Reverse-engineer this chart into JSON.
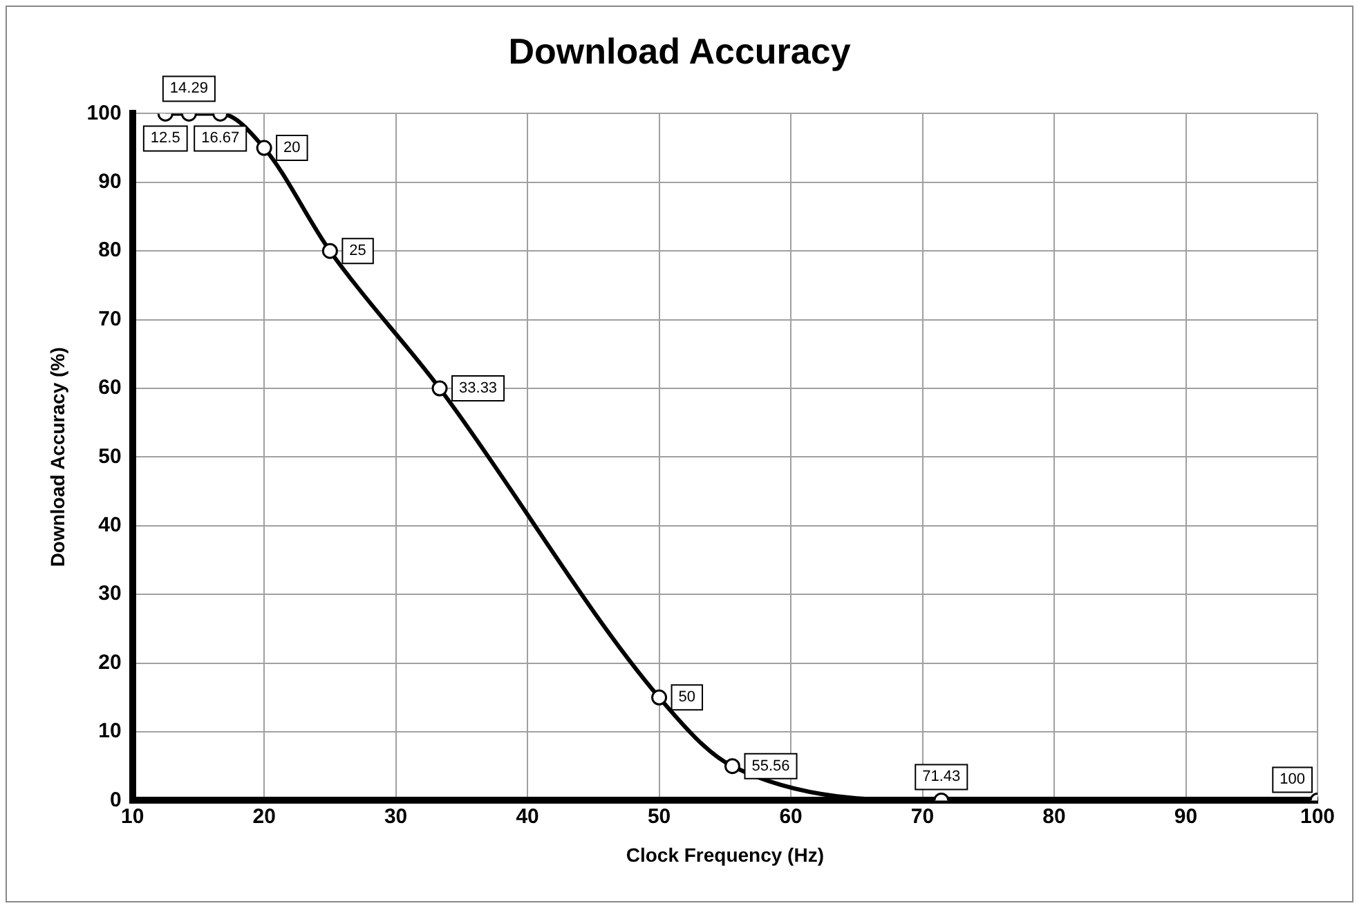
{
  "chart_data": {
    "type": "line",
    "title": "Download Accuracy",
    "xlabel": "Clock Frequency (Hz)",
    "ylabel": "Download Accuracy (%)",
    "x": [
      12.5,
      14.29,
      16.67,
      20,
      25,
      33.33,
      50,
      55.56,
      71.43,
      100
    ],
    "series": [
      {
        "color": "#000000",
        "values": [
          100,
          100,
          100,
          95,
          80,
          60,
          15,
          5,
          0,
          0
        ]
      }
    ],
    "xlim": [
      10,
      100
    ],
    "xticks": [
      10,
      20,
      30,
      40,
      50,
      60,
      70,
      80,
      90,
      100
    ],
    "ylim": [
      0,
      100
    ],
    "yticks": [
      0,
      10,
      20,
      30,
      40,
      50,
      60,
      70,
      80,
      90,
      100
    ],
    "grid": true,
    "legend": false,
    "marker": "circle",
    "line_style": "solid",
    "annotations": [
      {
        "text": "12.5",
        "x": 12.5,
        "y": 100
      },
      {
        "text": "14.29",
        "x": 14.29,
        "y": 100
      },
      {
        "text": "16.67",
        "x": 16.67,
        "y": 100
      },
      {
        "text": "20",
        "x": 20,
        "y": 95
      },
      {
        "text": "25",
        "x": 25,
        "y": 80
      },
      {
        "text": "33.33",
        "x": 33.33,
        "y": 60
      },
      {
        "text": "50",
        "x": 50,
        "y": 15
      },
      {
        "text": "55.56",
        "x": 55.56,
        "y": 5
      },
      {
        "text": "71.43",
        "x": 71.43,
        "y": 0
      },
      {
        "text": "100",
        "x": 100,
        "y": 0
      }
    ]
  }
}
